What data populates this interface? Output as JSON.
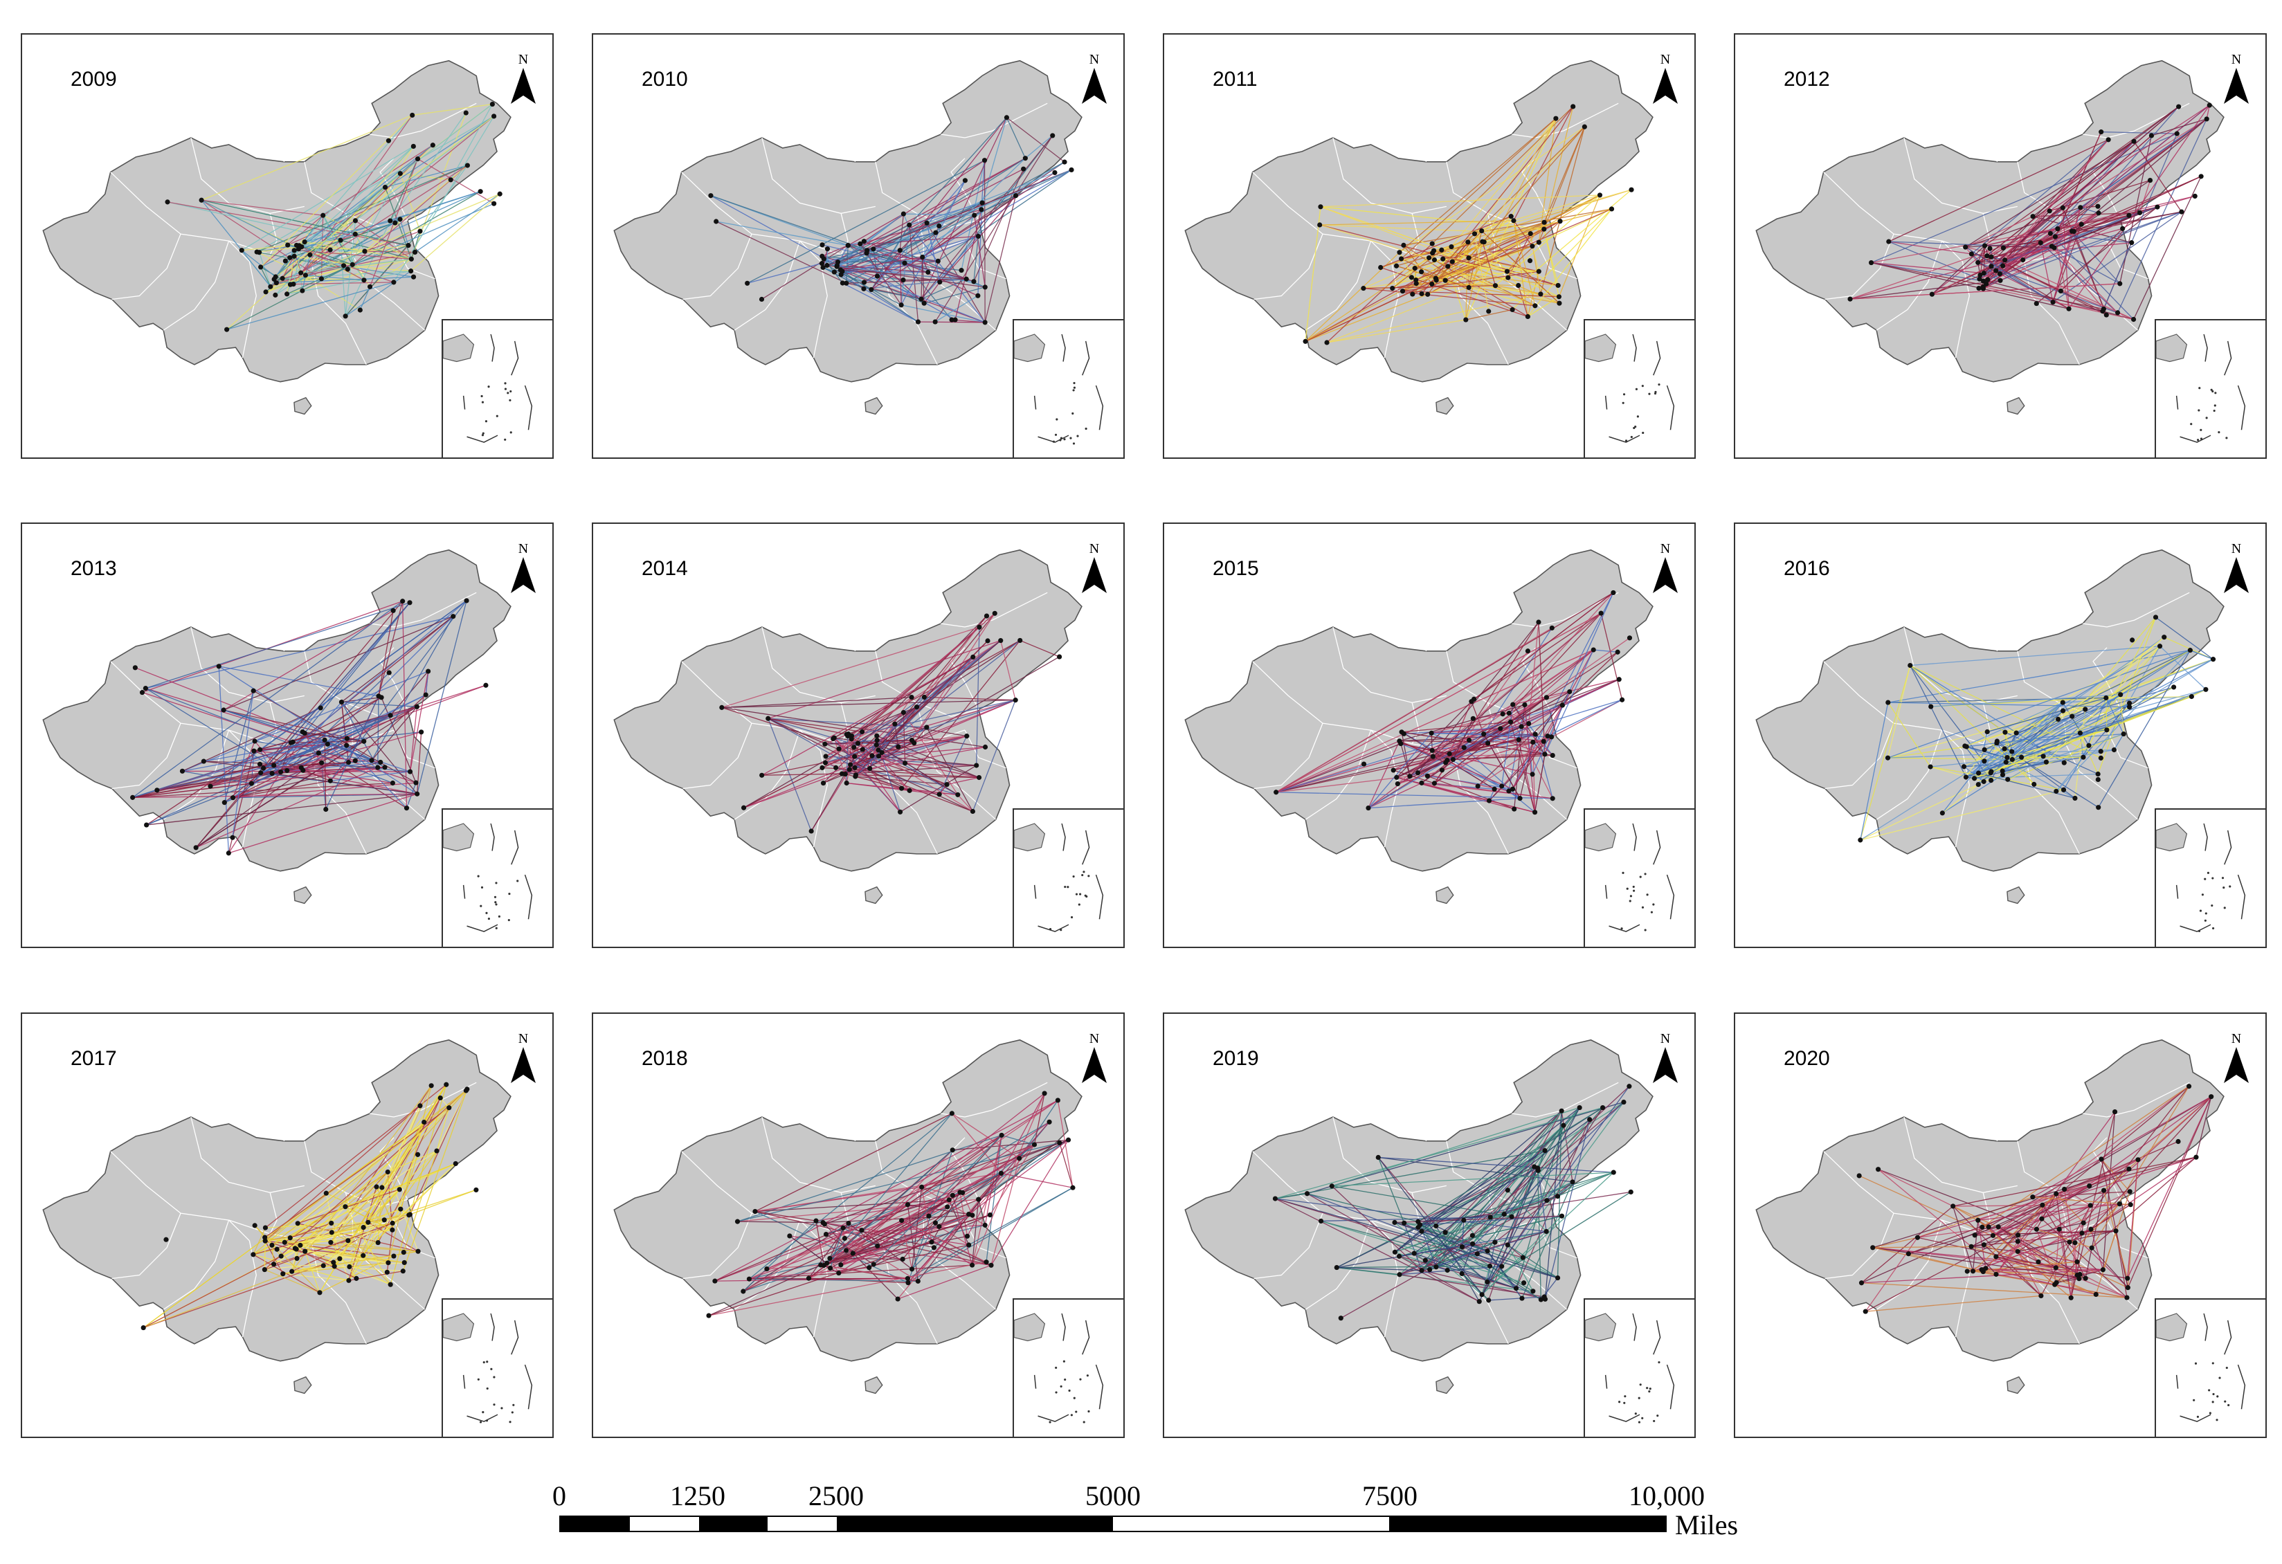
{
  "panels": [
    {
      "year": "2009",
      "palette": [
        "#e6e26a",
        "#4d8fbf",
        "#3a7f6e",
        "#b04a6a",
        "#7cc3c0"
      ]
    },
    {
      "year": "2010",
      "palette": [
        "#4d6fbf",
        "#9a2a5a",
        "#3a6f8e",
        "#7a3050",
        "#5c9ac8"
      ]
    },
    {
      "year": "2011",
      "palette": [
        "#f2e44a",
        "#e8b030",
        "#b03a3a",
        "#f0d860",
        "#c06a2a"
      ]
    },
    {
      "year": "2012",
      "palette": [
        "#8a1f3c",
        "#b03060",
        "#4a5fa0",
        "#6a2040",
        "#c04a6a"
      ]
    },
    {
      "year": "2013",
      "palette": [
        "#8a1f3c",
        "#b03060",
        "#4a6fbf",
        "#6a2040",
        "#3a5fa0"
      ]
    },
    {
      "year": "2014",
      "palette": [
        "#8a1f3c",
        "#b03060",
        "#4a5fa0",
        "#c05070",
        "#6a2040"
      ]
    },
    {
      "year": "2015",
      "palette": [
        "#8a1f3c",
        "#b03060",
        "#4a6fbf",
        "#c05070",
        "#6a2040"
      ]
    },
    {
      "year": "2016",
      "palette": [
        "#e6e24a",
        "#4a7fc8",
        "#3a5fa0",
        "#f0e870",
        "#6a9ad0"
      ]
    },
    {
      "year": "2017",
      "palette": [
        "#f2e44a",
        "#e8d030",
        "#f6ec80",
        "#b03a3a",
        "#e0c040"
      ]
    },
    {
      "year": "2018",
      "palette": [
        "#8a1f3c",
        "#b03060",
        "#c04a6a",
        "#3a6f8e",
        "#6a2040"
      ]
    },
    {
      "year": "2019",
      "palette": [
        "#2a6f6a",
        "#3a4f8e",
        "#7a2a50",
        "#4a9a8a",
        "#2a3a6a"
      ]
    },
    {
      "year": "2020",
      "palette": [
        "#8a1f3c",
        "#b03060",
        "#d08040",
        "#c04a6a",
        "#6a2040"
      ]
    }
  ],
  "north_label": "N",
  "scale": {
    "labels": [
      "0",
      "1250",
      "2500",
      "5000",
      "7500",
      "10,000"
    ],
    "units": "Miles"
  }
}
